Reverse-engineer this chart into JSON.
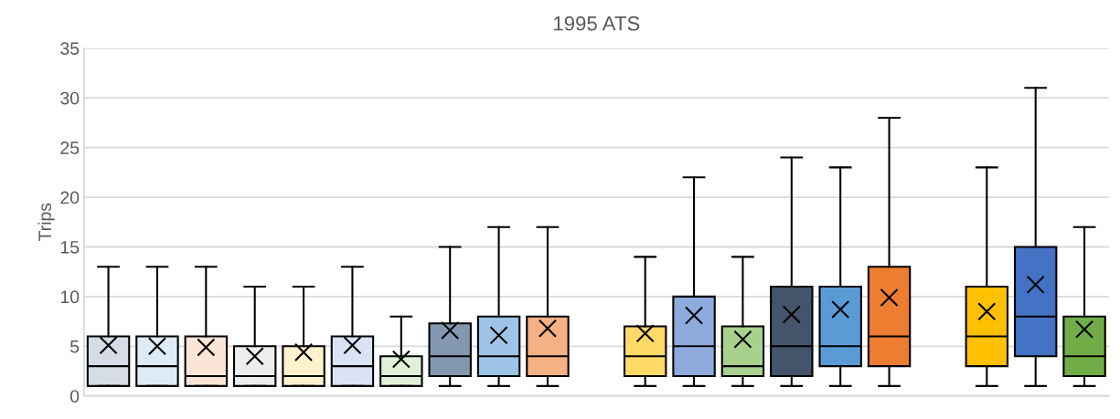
{
  "chart_data": {
    "type": "box",
    "title": "1995 ATS",
    "ylabel": "Trips",
    "categories": [
      null,
      null,
      null,
      null,
      null,
      null,
      null,
      null,
      null,
      null,
      null,
      null,
      null,
      null,
      null,
      null,
      null,
      null,
      null,
      null,
      null
    ],
    "boxes": [
      {
        "low": 1,
        "q1": 1,
        "median": 3,
        "q3": 6,
        "high": 13,
        "mean": 5.1
      },
      {
        "low": 1,
        "q1": 1,
        "median": 3,
        "q3": 6,
        "high": 13,
        "mean": 5.0
      },
      {
        "low": 1,
        "q1": 1,
        "median": 2,
        "q3": 6,
        "high": 13,
        "mean": 4.9
      },
      {
        "low": 1,
        "q1": 1,
        "median": 2,
        "q3": 5,
        "high": 11,
        "mean": 4.0
      },
      {
        "low": 1,
        "q1": 1,
        "median": 2,
        "q3": 5,
        "high": 11,
        "mean": 4.4
      },
      {
        "low": 1,
        "q1": 1,
        "median": 3,
        "q3": 6,
        "high": 13,
        "mean": 5.1
      },
      {
        "low": 1,
        "q1": 1,
        "median": 2,
        "q3": 4,
        "high": 8,
        "mean": 3.7
      },
      {
        "low": 1,
        "q1": 2,
        "median": 4,
        "q3": 7.3,
        "high": 15,
        "mean": 6.6
      },
      {
        "low": 1,
        "q1": 2,
        "median": 4,
        "q3": 8,
        "high": 17,
        "mean": 6.1
      },
      {
        "low": 1,
        "q1": 2,
        "median": 4,
        "q3": 8,
        "high": 17,
        "mean": 6.8
      },
      null,
      {
        "low": 1,
        "q1": 2,
        "median": 4,
        "q3": 7,
        "high": 14,
        "mean": 6.3
      },
      {
        "low": 1,
        "q1": 2,
        "median": 5,
        "q3": 10,
        "high": 22,
        "mean": 8.1
      },
      {
        "low": 1,
        "q1": 2,
        "median": 3,
        "q3": 7,
        "high": 14,
        "mean": 5.7
      },
      {
        "low": 1,
        "q1": 2,
        "median": 5,
        "q3": 11,
        "high": 24,
        "mean": 8.2
      },
      {
        "low": 1,
        "q1": 3,
        "median": 5,
        "q3": 11,
        "high": 23,
        "mean": 8.7
      },
      {
        "low": 1,
        "q1": 3,
        "median": 6,
        "q3": 13,
        "high": 28,
        "mean": 9.9
      },
      null,
      {
        "low": 1,
        "q1": 3,
        "median": 6,
        "q3": 11,
        "high": 23,
        "mean": 8.5
      },
      {
        "low": 1,
        "q1": 4,
        "median": 8,
        "q3": 15,
        "high": 31,
        "mean": 11.2
      },
      {
        "low": 1,
        "q1": 2,
        "median": 4,
        "q3": 8,
        "high": 17,
        "mean": 6.7
      }
    ],
    "colors": [
      "#d6dce5",
      "#deebf7",
      "#fbe5d6",
      "#ededed",
      "#fff2cc",
      "#dae3f3",
      "#e2f0d9",
      "#8497b0",
      "#9dc3e6",
      "#f4b183",
      null,
      "#ffd966",
      "#8faadc",
      "#a9d18e",
      "#44546a",
      "#5b9bd5",
      "#ed7d31",
      null,
      "#ffc000",
      "#4472c4",
      "#70ad47"
    ],
    "ylim": [
      0,
      35
    ],
    "yticks": [
      0,
      5,
      10,
      15,
      20,
      25,
      30,
      35
    ],
    "grid": "y",
    "legend": false
  }
}
